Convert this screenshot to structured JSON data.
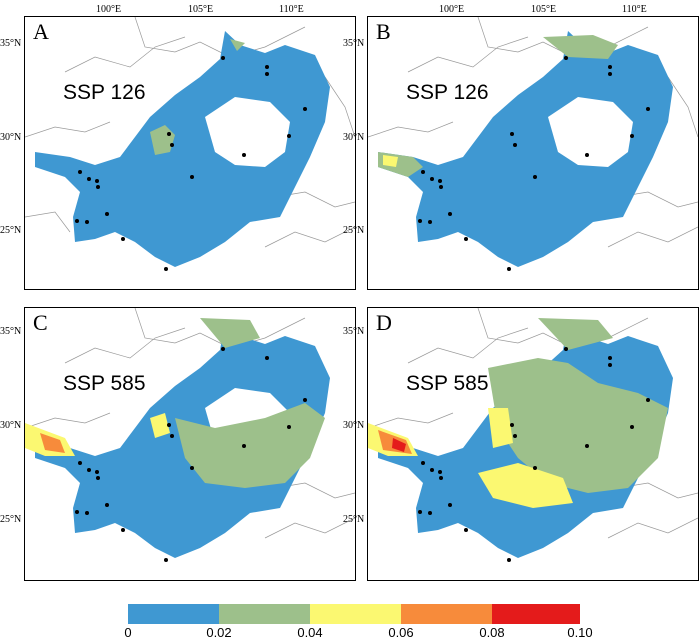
{
  "panels": [
    {
      "letter": "A",
      "scenario": "SSP 126"
    },
    {
      "letter": "B",
      "scenario": "SSP 126"
    },
    {
      "letter": "C",
      "scenario": "SSP 585"
    },
    {
      "letter": "D",
      "scenario": "SSP 585"
    }
  ],
  "axes": {
    "lon_ticks": [
      "100°E",
      "105°E",
      "110°E"
    ],
    "lat_ticks": [
      "35°N",
      "30°N",
      "25°N"
    ]
  },
  "legend": {
    "labels": [
      "0",
      "0.02",
      "0.04",
      "0.06",
      "0.08",
      "0.10"
    ],
    "colors": [
      "#3f98d2",
      "#9dc08b",
      "#fbf871",
      "#f78b3b",
      "#e41b1b"
    ]
  }
}
